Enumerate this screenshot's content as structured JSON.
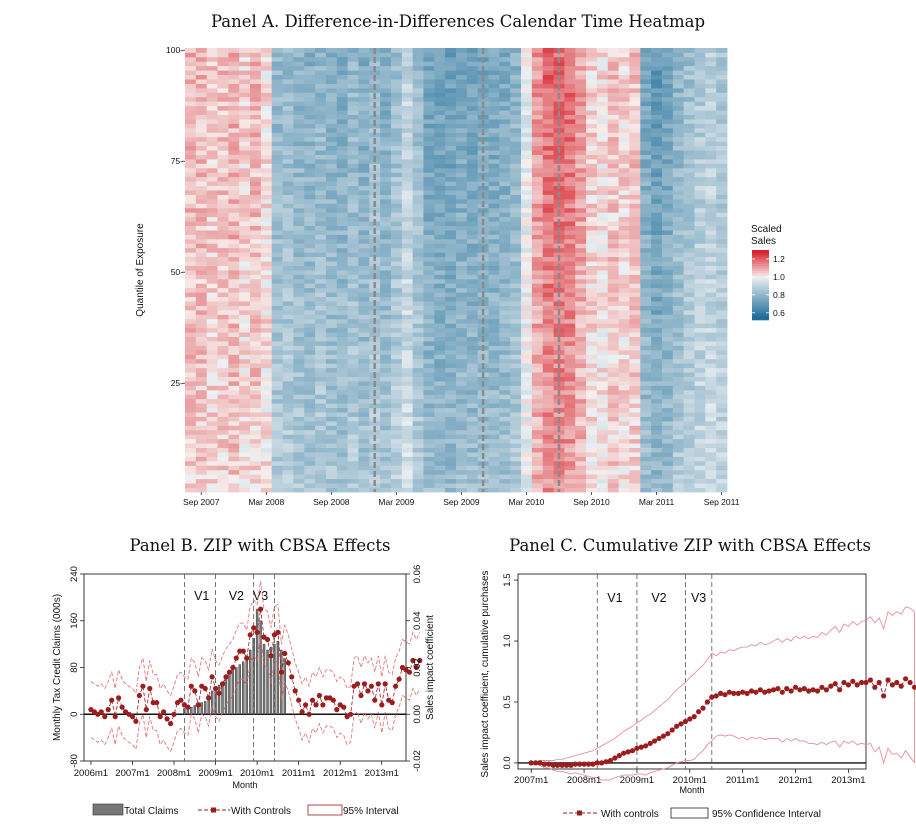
{
  "chart_data": [
    {
      "type": "heatmap",
      "title": "Panel A. Difference-in-Differences Calendar Time Heatmap",
      "xlabel": "",
      "ylabel": "Quantile of Exposure",
      "x_range": [
        "2007-08",
        "2011-09"
      ],
      "y_range": [
        1,
        100
      ],
      "x_ticks": [
        "Sep 2007",
        "Mar 2008",
        "Sep 2008",
        "Mar 2009",
        "Sep 2009",
        "Mar 2010",
        "Sep 2010",
        "Mar 2011",
        "Sep 2011"
      ],
      "y_ticks": [
        "25",
        "50",
        "75",
        "100"
      ],
      "y_tick_values": [
        25,
        50,
        75,
        100
      ],
      "legend": {
        "title": "Scaled Sales",
        "ticks": [
          "1.2",
          "1.0",
          "0.8",
          "0.6"
        ],
        "tick_values": [
          1.2,
          1.0,
          0.8,
          0.6
        ],
        "range": [
          0.52,
          1.3
        ]
      },
      "dashed_lines": [
        "2009-01",
        "2009-11",
        "2010-06"
      ],
      "month_profile": [
        1.06,
        1.06,
        1.04,
        1.05,
        1.07,
        1.03,
        1.06,
        1.02,
        0.84,
        0.85,
        0.83,
        0.82,
        0.84,
        0.82,
        0.81,
        0.84,
        0.81,
        0.85,
        0.81,
        0.86,
        0.92,
        0.85,
        0.78,
        0.77,
        0.77,
        0.79,
        0.78,
        0.79,
        0.79,
        0.8,
        0.83,
        0.98,
        1.1,
        1.15,
        1.15,
        1.14,
        1.09,
        1.03,
        1.02,
        1.05,
        1.03,
        1.05,
        0.79,
        0.75,
        0.78,
        0.83,
        0.86,
        0.89,
        0.91,
        0.88
      ]
    },
    {
      "type": "bar",
      "title": "Panel B. ZIP with CBSA Effects",
      "xlabel": "Month",
      "ylabel": "Monthly Tax Credit Claims (000s)",
      "ylabel_right": "Sales impact coefficient",
      "x_ticks": [
        "2006m1",
        "2007m1",
        "2008m1",
        "2009m1",
        "2010m1",
        "2011m1",
        "2012m1",
        "2013m1"
      ],
      "y_ticks_left": [
        "-80",
        "0",
        "80",
        "160",
        "240"
      ],
      "y_ticks_right": [
        "-0.02",
        "0.00",
        "0.02",
        "0.04",
        "0.06"
      ],
      "ylim_left": [
        -80,
        240
      ],
      "ylim_right": [
        -0.02,
        0.06
      ],
      "vlines": [
        {
          "label": "V1",
          "month": "2008m4"
        },
        {
          "label": "V2",
          "month": "2009m1"
        },
        {
          "label": "V3",
          "month": "2010m6"
        }
      ],
      "extra_vline_month": "2009m12",
      "bars_start": "2008m4",
      "bars_claims": [
        10,
        10,
        12,
        15,
        18,
        20,
        22,
        25,
        40,
        45,
        50,
        55,
        60,
        70,
        75,
        80,
        85,
        90,
        95,
        110,
        130,
        180,
        160,
        120,
        110,
        115,
        120,
        125,
        110,
        95
      ],
      "series": [
        {
          "name": "With Controls",
          "start": "2006m1",
          "values": [
            0.002,
            0.001,
            0.0,
            0.001,
            -0.001,
            0.002,
            0.006,
            -0.001,
            0.007,
            0.003,
            0.001,
            0.0,
            -0.001,
            -0.003,
            0.008,
            0.012,
            0.002,
            0.011,
            0.005,
            0.005,
            -0.001,
            0.001,
            -0.002,
            -0.004,
            0.0,
            0.005,
            0.006,
            0.004,
            0.003,
            0.012,
            0.01,
            0.004,
            0.012,
            0.011,
            0.007,
            0.016,
            0.011,
            0.009,
            0.013,
            0.016,
            0.018,
            0.02,
            0.024,
            0.027,
            0.027,
            0.024,
            0.034,
            0.037,
            0.035,
            0.045,
            0.033,
            0.032,
            0.025,
            0.034,
            0.035,
            0.018,
            0.026,
            0.022,
            0.016,
            0.01,
            0.006,
            0.001,
            0.004,
            0.0,
            0.006,
            0.004,
            0.008,
            0.004,
            0.007,
            0.007,
            0.006,
            0.002,
            0.004,
            0.003,
            -0.001,
            0.0,
            0.012,
            0.013,
            0.008,
            0.013,
            0.01,
            0.012,
            0.006,
            0.013,
            0.004,
            0.013,
            0.006,
            0.005,
            0.012,
            0.015,
            0.02,
            0.019,
            0.018,
            0.023,
            0.02,
            0.023
          ]
        }
      ],
      "ci_halfwidth": 0.012,
      "legend": [
        "Total Claims",
        "With Controls",
        "95% Interval"
      ]
    },
    {
      "type": "line",
      "title": "Panel C. Cumulative ZIP with CBSA Effects",
      "xlabel": "Month",
      "ylabel": "Sales impact coefficient, cumulative purchases",
      "x_ticks": [
        "2007m1",
        "2008m1",
        "2009m1",
        "2010m1",
        "2011m1",
        "2012m1",
        "2013m1"
      ],
      "y_ticks": [
        "0.0",
        "0.5",
        "1.0",
        "1.5"
      ],
      "ylim": [
        -0.05,
        1.55
      ],
      "vlines": [
        {
          "label": "V1",
          "month": "2008m4"
        },
        {
          "label": "V2",
          "month": "2009m1"
        },
        {
          "label": "V3",
          "month": "2010m6"
        }
      ],
      "extra_vline_month": "2009m12",
      "series": [
        {
          "name": "With controls",
          "start": "2007m1",
          "values": [
            0.0,
            0.0,
            0.0,
            -0.01,
            -0.01,
            -0.02,
            -0.02,
            -0.02,
            -0.02,
            -0.02,
            -0.01,
            -0.01,
            -0.01,
            -0.01,
            -0.01,
            0.0,
            0.0,
            0.01,
            0.02,
            0.04,
            0.06,
            0.08,
            0.09,
            0.1,
            0.12,
            0.13,
            0.14,
            0.16,
            0.18,
            0.2,
            0.22,
            0.24,
            0.27,
            0.3,
            0.32,
            0.34,
            0.36,
            0.38,
            0.42,
            0.45,
            0.5,
            0.54,
            0.55,
            0.57,
            0.56,
            0.58,
            0.57,
            0.57,
            0.58,
            0.57,
            0.59,
            0.58,
            0.6,
            0.58,
            0.59,
            0.6,
            0.61,
            0.58,
            0.61,
            0.59,
            0.62,
            0.6,
            0.61,
            0.59,
            0.6,
            0.59,
            0.62,
            0.6,
            0.63,
            0.65,
            0.6,
            0.66,
            0.64,
            0.67,
            0.64,
            0.66,
            0.66,
            0.68,
            0.62,
            0.66,
            0.55,
            0.68,
            0.64,
            0.66,
            0.63,
            0.69,
            0.66,
            0.62
          ]
        }
      ],
      "ci_upper": [
        0.0,
        0.01,
        0.02,
        0.02,
        0.02,
        0.02,
        0.03,
        0.03,
        0.04,
        0.05,
        0.06,
        0.07,
        0.08,
        0.09,
        0.1,
        0.12,
        0.14,
        0.16,
        0.18,
        0.2,
        0.23,
        0.26,
        0.28,
        0.3,
        0.33,
        0.35,
        0.38,
        0.4,
        0.43,
        0.46,
        0.49,
        0.52,
        0.56,
        0.6,
        0.63,
        0.66,
        0.7,
        0.73,
        0.77,
        0.8,
        0.85,
        0.9,
        0.88,
        0.91,
        0.9,
        0.93,
        0.92,
        0.94,
        0.95,
        0.95,
        0.97,
        0.96,
        0.99,
        0.97,
        0.98,
        1.0,
        1.02,
        0.99,
        1.02,
        1.0,
        1.04,
        1.02,
        1.04,
        1.02,
        1.04,
        1.03,
        1.07,
        1.05,
        1.09,
        1.12,
        1.07,
        1.14,
        1.12,
        1.16,
        1.13,
        1.16,
        1.17,
        1.2,
        1.15,
        1.19,
        1.1,
        1.24,
        1.21,
        1.24,
        1.22,
        1.28,
        1.27,
        1.24
      ],
      "ci_lower": [
        0.0,
        -0.01,
        -0.02,
        -0.04,
        -0.04,
        -0.06,
        -0.07,
        -0.07,
        -0.08,
        -0.09,
        -0.08,
        -0.09,
        -0.1,
        -0.11,
        -0.12,
        -0.12,
        -0.14,
        -0.14,
        -0.14,
        -0.12,
        -0.11,
        -0.1,
        -0.1,
        -0.1,
        -0.09,
        -0.09,
        -0.1,
        -0.08,
        -0.07,
        -0.06,
        -0.05,
        -0.04,
        -0.02,
        0.0,
        0.01,
        0.02,
        0.02,
        0.03,
        0.07,
        0.1,
        0.15,
        0.18,
        0.22,
        0.23,
        0.22,
        0.23,
        0.22,
        0.2,
        0.21,
        0.19,
        0.21,
        0.2,
        0.21,
        0.19,
        0.2,
        0.2,
        0.2,
        0.17,
        0.2,
        0.18,
        0.2,
        0.18,
        0.18,
        0.16,
        0.16,
        0.15,
        0.17,
        0.15,
        0.17,
        0.18,
        0.13,
        0.18,
        0.16,
        0.18,
        0.15,
        0.16,
        0.15,
        0.16,
        0.09,
        0.13,
        0.0,
        0.12,
        0.07,
        0.08,
        0.04,
        0.1,
        0.05,
        0.0
      ],
      "legend": [
        "With controls",
        "95% Confidence Interval"
      ]
    }
  ]
}
